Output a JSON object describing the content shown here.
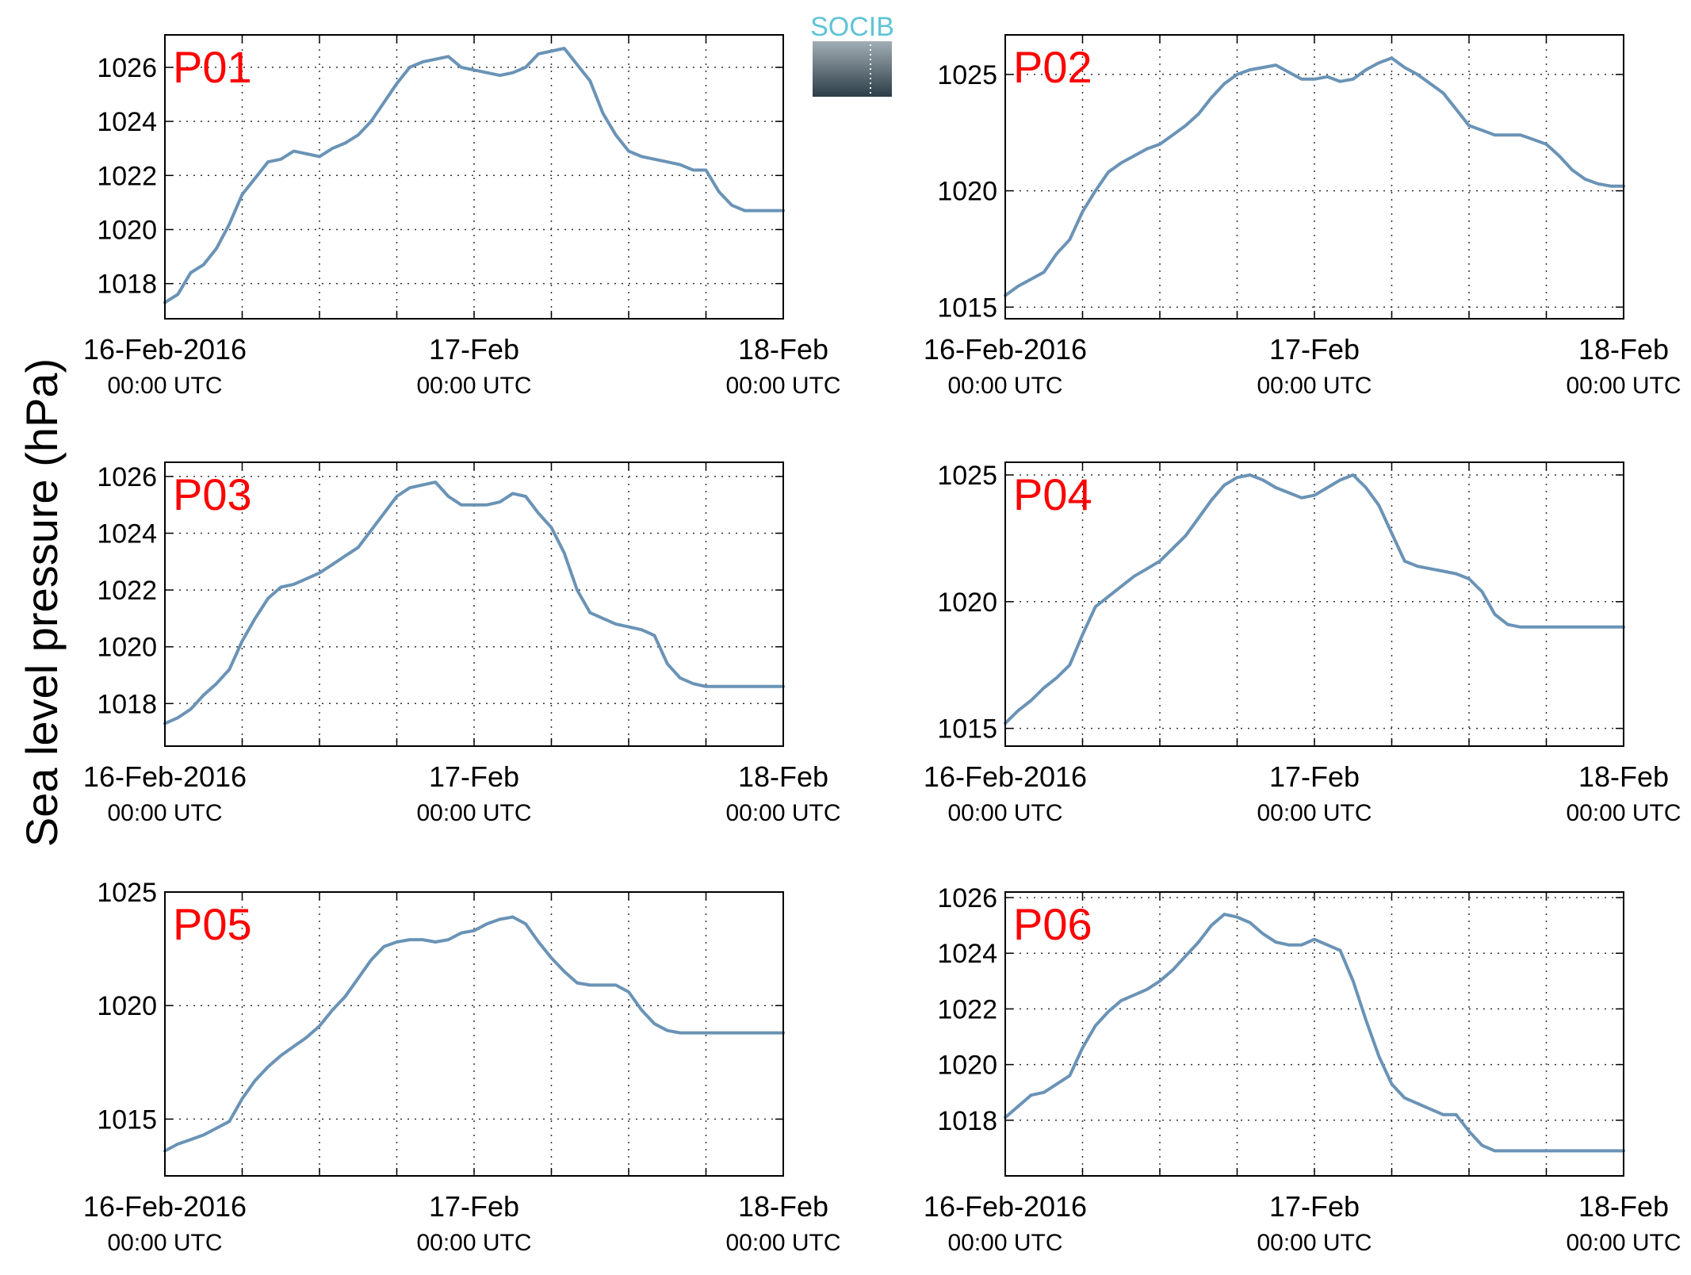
{
  "figure": {
    "ylabel": "Sea level pressure (hPa)",
    "logo_text": "SOCIB"
  },
  "x_axis": {
    "ticks": [
      {
        "hours": 0,
        "main": "16-Feb-2016",
        "sub": "00:00 UTC"
      },
      {
        "hours": 24,
        "main": "17-Feb",
        "sub": "00:00 UTC"
      },
      {
        "hours": 48,
        "main": "18-Feb",
        "sub": "00:00 UTC"
      }
    ],
    "grid_every_hours": 6,
    "range_hours": [
      0,
      48
    ]
  },
  "colors": {
    "line": "#6a93b6",
    "label": "#ff0000"
  },
  "chart_data": [
    {
      "type": "line",
      "title": "P01",
      "ylim": [
        1016.7,
        1027.2
      ],
      "yticks": [
        1018,
        1020,
        1022,
        1024,
        1026
      ],
      "grid": true,
      "x": [
        0,
        1,
        2,
        3,
        4,
        5,
        6,
        7,
        8,
        9,
        10,
        11,
        12,
        13,
        14,
        15,
        16,
        17,
        18,
        19,
        20,
        21,
        22,
        23,
        24,
        25,
        26,
        27,
        28,
        29,
        30,
        31,
        32,
        33,
        34,
        35,
        36,
        37,
        38,
        39,
        40,
        41,
        42,
        43,
        44,
        45,
        46,
        47,
        48
      ],
      "values": [
        1017.3,
        1017.6,
        1018.4,
        1018.7,
        1019.3,
        1020.2,
        1021.3,
        1021.9,
        1022.5,
        1022.6,
        1022.9,
        1022.8,
        1022.7,
        1023.0,
        1023.2,
        1023.5,
        1024.0,
        1024.7,
        1025.4,
        1026.0,
        1026.2,
        1026.3,
        1026.4,
        1026.0,
        1025.9,
        1025.8,
        1025.7,
        1025.8,
        1026.0,
        1026.5,
        1026.6,
        1026.7,
        1026.1,
        1025.5,
        1024.3,
        1023.5,
        1022.9,
        1022.7,
        1022.6,
        1022.5,
        1022.4,
        1022.2,
        1022.2,
        1021.4,
        1020.9,
        1020.7,
        1020.7,
        1020.7,
        1020.7
      ]
    },
    {
      "type": "line",
      "title": "P02",
      "ylim": [
        1014.5,
        1026.7
      ],
      "yticks": [
        1015,
        1020,
        1025
      ],
      "grid": true,
      "x": [
        0,
        1,
        2,
        3,
        4,
        5,
        6,
        7,
        8,
        9,
        10,
        11,
        12,
        13,
        14,
        15,
        16,
        17,
        18,
        19,
        20,
        21,
        22,
        23,
        24,
        25,
        26,
        27,
        28,
        29,
        30,
        31,
        32,
        33,
        34,
        35,
        36,
        37,
        38,
        39,
        40,
        41,
        42,
        43,
        44,
        45,
        46,
        47,
        48
      ],
      "values": [
        1015.5,
        1015.9,
        1016.2,
        1016.5,
        1017.3,
        1017.9,
        1019.1,
        1020.0,
        1020.8,
        1021.2,
        1021.5,
        1021.8,
        1022.0,
        1022.4,
        1022.8,
        1023.3,
        1024.0,
        1024.6,
        1025.0,
        1025.2,
        1025.3,
        1025.4,
        1025.1,
        1024.8,
        1024.8,
        1024.9,
        1024.7,
        1024.8,
        1025.2,
        1025.5,
        1025.7,
        1025.3,
        1025.0,
        1024.6,
        1024.2,
        1023.5,
        1022.8,
        1022.6,
        1022.4,
        1022.4,
        1022.4,
        1022.2,
        1022.0,
        1021.5,
        1020.9,
        1020.5,
        1020.3,
        1020.2,
        1020.2
      ]
    },
    {
      "type": "line",
      "title": "P03",
      "ylim": [
        1016.5,
        1026.5
      ],
      "yticks": [
        1018,
        1020,
        1022,
        1024,
        1026
      ],
      "grid": true,
      "x": [
        0,
        1,
        2,
        3,
        4,
        5,
        6,
        7,
        8,
        9,
        10,
        11,
        12,
        13,
        14,
        15,
        16,
        17,
        18,
        19,
        20,
        21,
        22,
        23,
        24,
        25,
        26,
        27,
        28,
        29,
        30,
        31,
        32,
        33,
        34,
        35,
        36,
        37,
        38,
        39,
        40,
        41,
        42,
        43,
        44,
        45,
        46,
        47,
        48
      ],
      "values": [
        1017.3,
        1017.5,
        1017.8,
        1018.3,
        1018.7,
        1019.2,
        1020.2,
        1021.0,
        1021.7,
        1022.1,
        1022.2,
        1022.4,
        1022.6,
        1022.9,
        1023.2,
        1023.5,
        1024.1,
        1024.7,
        1025.3,
        1025.6,
        1025.7,
        1025.8,
        1025.3,
        1025.0,
        1025.0,
        1025.0,
        1025.1,
        1025.4,
        1025.3,
        1024.7,
        1024.2,
        1023.3,
        1022.0,
        1021.2,
        1021.0,
        1020.8,
        1020.7,
        1020.6,
        1020.4,
        1019.4,
        1018.9,
        1018.7,
        1018.6,
        1018.6,
        1018.6,
        1018.6,
        1018.6,
        1018.6,
        1018.6
      ]
    },
    {
      "type": "line",
      "title": "P04",
      "ylim": [
        1014.3,
        1025.5
      ],
      "yticks": [
        1015,
        1020,
        1025
      ],
      "grid": true,
      "x": [
        0,
        1,
        2,
        3,
        4,
        5,
        6,
        7,
        8,
        9,
        10,
        11,
        12,
        13,
        14,
        15,
        16,
        17,
        18,
        19,
        20,
        21,
        22,
        23,
        24,
        25,
        26,
        27,
        28,
        29,
        30,
        31,
        32,
        33,
        34,
        35,
        36,
        37,
        38,
        39,
        40,
        41,
        42,
        43,
        44,
        45,
        46,
        47,
        48
      ],
      "values": [
        1015.2,
        1015.7,
        1016.1,
        1016.6,
        1017.0,
        1017.5,
        1018.7,
        1019.8,
        1020.2,
        1020.6,
        1021.0,
        1021.3,
        1021.6,
        1022.1,
        1022.6,
        1023.3,
        1024.0,
        1024.6,
        1024.9,
        1025.0,
        1024.8,
        1024.5,
        1024.3,
        1024.1,
        1024.2,
        1024.5,
        1024.8,
        1025.0,
        1024.5,
        1023.8,
        1022.7,
        1021.6,
        1021.4,
        1021.3,
        1021.2,
        1021.1,
        1020.9,
        1020.4,
        1019.5,
        1019.1,
        1019.0,
        1019.0,
        1019.0,
        1019.0,
        1019.0,
        1019.0,
        1019.0,
        1019.0,
        1019.0
      ]
    },
    {
      "type": "line",
      "title": "P05",
      "ylim": [
        1012.5,
        1025.0
      ],
      "yticks": [
        1015,
        1020,
        1025
      ],
      "grid": true,
      "x": [
        0,
        1,
        2,
        3,
        4,
        5,
        6,
        7,
        8,
        9,
        10,
        11,
        12,
        13,
        14,
        15,
        16,
        17,
        18,
        19,
        20,
        21,
        22,
        23,
        24,
        25,
        26,
        27,
        28,
        29,
        30,
        31,
        32,
        33,
        34,
        35,
        36,
        37,
        38,
        39,
        40,
        41,
        42,
        43,
        44,
        45,
        46,
        47,
        48
      ],
      "values": [
        1013.6,
        1013.9,
        1014.1,
        1014.3,
        1014.6,
        1014.9,
        1015.9,
        1016.7,
        1017.3,
        1017.8,
        1018.2,
        1018.6,
        1019.1,
        1019.8,
        1020.4,
        1021.2,
        1022.0,
        1022.6,
        1022.8,
        1022.9,
        1022.9,
        1022.8,
        1022.9,
        1023.2,
        1023.3,
        1023.6,
        1023.8,
        1023.9,
        1023.6,
        1022.8,
        1022.1,
        1021.5,
        1021.0,
        1020.9,
        1020.9,
        1020.9,
        1020.6,
        1019.8,
        1019.2,
        1018.9,
        1018.8,
        1018.8,
        1018.8,
        1018.8,
        1018.8,
        1018.8,
        1018.8,
        1018.8,
        1018.8
      ]
    },
    {
      "type": "line",
      "title": "P06",
      "ylim": [
        1016.0,
        1026.2
      ],
      "yticks": [
        1018,
        1020,
        1022,
        1024,
        1026
      ],
      "grid": true,
      "x": [
        0,
        1,
        2,
        3,
        4,
        5,
        6,
        7,
        8,
        9,
        10,
        11,
        12,
        13,
        14,
        15,
        16,
        17,
        18,
        19,
        20,
        21,
        22,
        23,
        24,
        25,
        26,
        27,
        28,
        29,
        30,
        31,
        32,
        33,
        34,
        35,
        36,
        37,
        38,
        39,
        40,
        41,
        42,
        43,
        44,
        45,
        46,
        47,
        48
      ],
      "values": [
        1018.1,
        1018.5,
        1018.9,
        1019.0,
        1019.3,
        1019.6,
        1020.6,
        1021.4,
        1021.9,
        1022.3,
        1022.5,
        1022.7,
        1023.0,
        1023.4,
        1023.9,
        1024.4,
        1025.0,
        1025.4,
        1025.3,
        1025.1,
        1024.7,
        1024.4,
        1024.3,
        1024.3,
        1024.5,
        1024.3,
        1024.1,
        1023.0,
        1021.6,
        1020.3,
        1019.3,
        1018.8,
        1018.6,
        1018.4,
        1018.2,
        1018.2,
        1017.6,
        1017.1,
        1016.9,
        1016.9,
        1016.9,
        1016.9,
        1016.9,
        1016.9,
        1016.9,
        1016.9,
        1016.9,
        1016.9,
        1016.9
      ]
    }
  ]
}
